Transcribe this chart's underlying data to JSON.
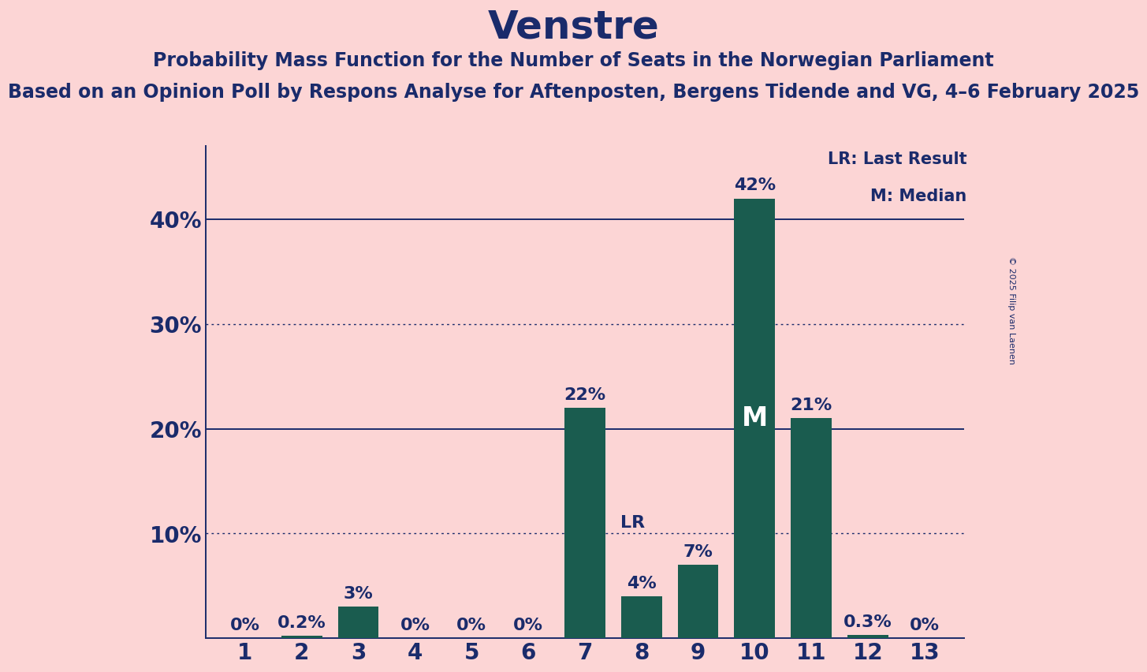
{
  "title": "Venstre",
  "subtitle1": "Probability Mass Function for the Number of Seats in the Norwegian Parliament",
  "subtitle2": "Based on an Opinion Poll by Respons Analyse for Aftenposten, Bergens Tidende and VG, 4–6 February 2025",
  "copyright": "© 2025 Filip van Laenen",
  "categories": [
    1,
    2,
    3,
    4,
    5,
    6,
    7,
    8,
    9,
    10,
    11,
    12,
    13
  ],
  "values": [
    0.0,
    0.2,
    3.0,
    0.0,
    0.0,
    0.0,
    22.0,
    4.0,
    7.0,
    42.0,
    21.0,
    0.3,
    0.0
  ],
  "bar_color": "#1a5c4f",
  "background_color": "#fcd5d5",
  "title_color": "#1a2b6b",
  "subtitle_color": "#1a2b6b",
  "tick_label_color": "#1a2b6b",
  "bar_label_color": "#1a2b6b",
  "median_label_color": "#ffffff",
  "lr_label_color": "#1a2b6b",
  "legend_color": "#1a2b6b",
  "solid_line_color": "#1a2b6b",
  "dotted_line_color": "#1a2b6b",
  "yticks": [
    0,
    10,
    20,
    30,
    40
  ],
  "ytick_labels": [
    "",
    "10%",
    "20%",
    "30%",
    "40%"
  ],
  "dotted_lines": [
    10,
    30
  ],
  "solid_lines": [
    20,
    40
  ],
  "last_result_seat": 8,
  "median_seat": 10,
  "legend_lr": "LR: Last Result",
  "legend_m": "M: Median",
  "xlim": [
    0.3,
    13.7
  ],
  "ylim": [
    0,
    47
  ]
}
